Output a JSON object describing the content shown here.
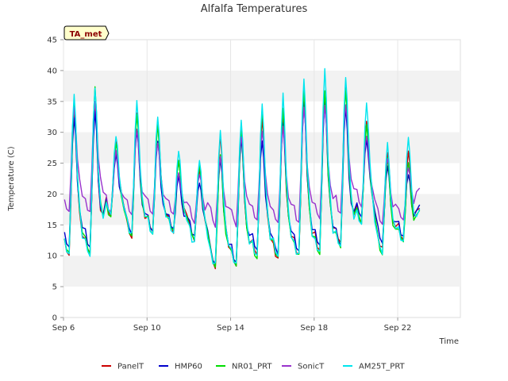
{
  "chart_data": {
    "type": "line",
    "title": "Alfalfa Temperatures",
    "xlabel": "Time",
    "ylabel": "Temperature (C)",
    "badge": "TA_met",
    "ylim": [
      0,
      45
    ],
    "yticks": [
      0,
      5,
      10,
      15,
      20,
      25,
      30,
      35,
      40,
      45
    ],
    "xlim": [
      "2023-09-06",
      "2023-09-25"
    ],
    "xticks": [
      {
        "date": "2023-09-06",
        "label": "Sep 6"
      },
      {
        "date": "2023-09-10",
        "label": "Sep 10"
      },
      {
        "date": "2023-09-14",
        "label": "Sep 14"
      },
      {
        "date": "2023-09-18",
        "label": "Sep 18"
      },
      {
        "date": "2023-09-22",
        "label": "Sep 22"
      }
    ],
    "grid": true,
    "legend_position": "bottom",
    "daily_extremes_note": "Daily minima (early morning) and maxima (mid-afternoon) per series, Sep 6 to Sep 23",
    "series": [
      {
        "name": "PanelT",
        "color": "#cc0000",
        "min": [
          10.3,
          10.3,
          16.8,
          13.0,
          13.8,
          14.0,
          12.6,
          8.2,
          8.2,
          10.0,
          9.5,
          10.2,
          11.0,
          11.8,
          15.5,
          11.0,
          12.5
        ],
        "max": [
          33.5,
          34.5,
          28.5,
          33.5,
          31.5,
          25.5,
          24.0,
          29.5,
          30.0,
          32.5,
          32.0,
          36.0,
          36.0,
          37.5,
          31.5,
          26.5,
          27.0
        ]
      },
      {
        "name": "HMP60",
        "color": "#0000cc",
        "min": [
          11.5,
          11.5,
          16.5,
          13.5,
          14.0,
          14.0,
          13.0,
          9.0,
          9.0,
          11.0,
          10.5,
          11.0,
          11.5,
          12.0,
          16.0,
          12.0,
          13.0
        ],
        "max": [
          32.5,
          33.5,
          26.5,
          30.5,
          28.5,
          23.0,
          22.0,
          26.0,
          29.0,
          29.0,
          31.5,
          34.5,
          35.0,
          34.0,
          29.0,
          24.5,
          23.5
        ]
      },
      {
        "name": "NR01_PRT",
        "color": "#00dd00",
        "min": [
          10.5,
          10.5,
          16.0,
          13.2,
          13.8,
          13.8,
          12.5,
          8.5,
          8.5,
          9.8,
          9.8,
          10.0,
          10.5,
          11.5,
          15.5,
          10.5,
          12.0
        ],
        "max": [
          35.0,
          37.0,
          28.5,
          33.0,
          31.0,
          25.5,
          24.5,
          26.5,
          30.0,
          33.5,
          33.5,
          37.0,
          36.5,
          37.0,
          31.0,
          26.0,
          25.0
        ]
      },
      {
        "name": "SonicT",
        "color": "#9933cc",
        "min": [
          17.0,
          17.0,
          17.0,
          16.5,
          16.5,
          16.5,
          15.5,
          15.0,
          15.0,
          15.5,
          15.0,
          15.5,
          16.0,
          17.0,
          18.0,
          15.0,
          15.5
        ],
        "max": [
          34.0,
          35.0,
          27.0,
          30.5,
          28.5,
          23.5,
          23.0,
          26.0,
          29.5,
          30.0,
          31.0,
          34.0,
          34.5,
          34.5,
          29.5,
          26.0,
          24.5
        ]
      },
      {
        "name": "AM25T_PRT",
        "color": "#00e5ee",
        "min": [
          10.0,
          10.0,
          16.5,
          13.5,
          13.5,
          13.5,
          12.0,
          8.5,
          8.5,
          10.0,
          10.0,
          10.0,
          10.5,
          11.5,
          15.0,
          10.5,
          12.0
        ],
        "max": [
          36.0,
          37.5,
          29.5,
          35.0,
          32.5,
          27.0,
          25.5,
          30.0,
          32.0,
          34.5,
          36.0,
          39.0,
          40.0,
          39.0,
          34.5,
          28.0,
          29.0
        ]
      }
    ]
  }
}
